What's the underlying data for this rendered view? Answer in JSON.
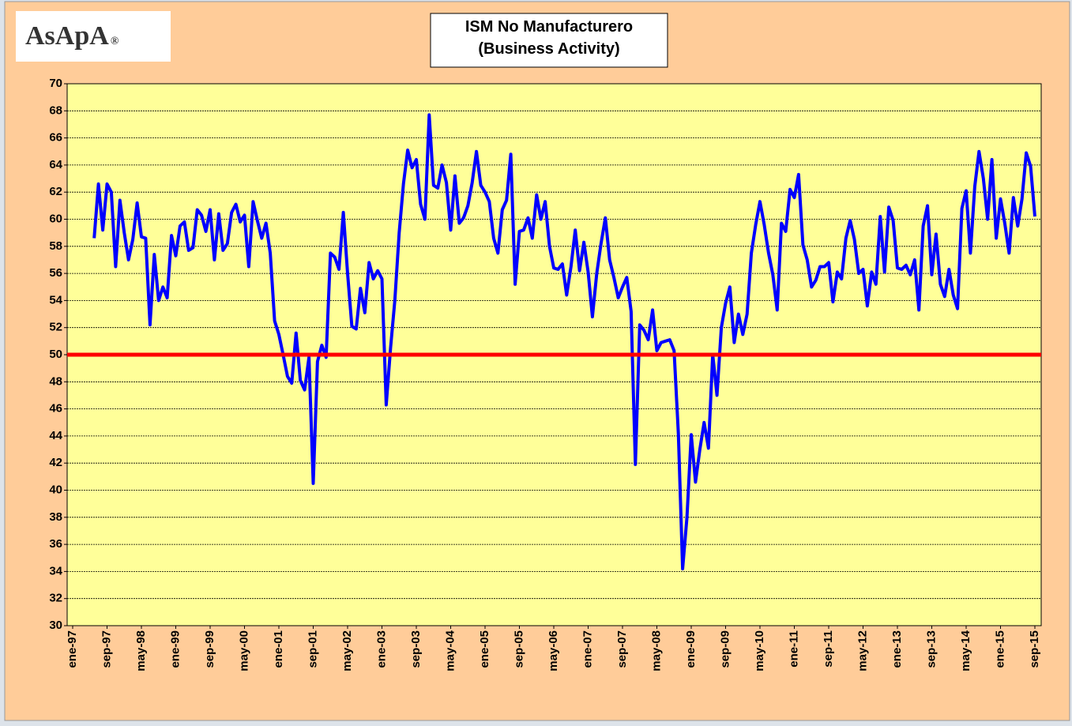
{
  "chart_data": {
    "type": "line",
    "title": "ISM No Manufacturero",
    "subtitle": "(Business Activity)",
    "logo": {
      "name": "AsApA",
      "mark": "®"
    },
    "categories": [
      "ene-97",
      null,
      null,
      null,
      null,
      null,
      null,
      null,
      "sep-97",
      null,
      null,
      null,
      null,
      null,
      null,
      null,
      "may-98",
      null,
      null,
      null,
      null,
      null,
      null,
      null,
      "ene-99",
      null,
      null,
      null,
      null,
      null,
      null,
      null,
      "sep-99",
      null,
      null,
      null,
      null,
      null,
      null,
      null,
      "may-00",
      null,
      null,
      null,
      null,
      null,
      null,
      null,
      "ene-01",
      null,
      null,
      null,
      null,
      null,
      null,
      null,
      "sep-01",
      null,
      null,
      null,
      null,
      null,
      null,
      null,
      "may-02",
      null,
      null,
      null,
      null,
      null,
      null,
      null,
      "ene-03",
      null,
      null,
      null,
      null,
      null,
      null,
      null,
      "sep-03",
      null,
      null,
      null,
      null,
      null,
      null,
      null,
      "may-04",
      null,
      null,
      null,
      null,
      null,
      null,
      null,
      "ene-05",
      null,
      null,
      null,
      null,
      null,
      null,
      null,
      "sep-05",
      null,
      null,
      null,
      null,
      null,
      null,
      null,
      "may-06",
      null,
      null,
      null,
      null,
      null,
      null,
      null,
      "ene-07",
      null,
      null,
      null,
      null,
      null,
      null,
      null,
      "sep-07",
      null,
      null,
      null,
      null,
      null,
      null,
      null,
      "may-08",
      null,
      null,
      null,
      null,
      null,
      null,
      null,
      "ene-09",
      null,
      null,
      null,
      null,
      null,
      null,
      null,
      "sep-09",
      null,
      null,
      null,
      null,
      null,
      null,
      null,
      "may-10",
      null,
      null,
      null,
      null,
      null,
      null,
      null,
      "ene-11",
      null,
      null,
      null,
      null,
      null,
      null,
      null,
      "sep-11",
      null,
      null,
      null,
      null,
      null,
      null,
      null,
      "may-12",
      null,
      null,
      null,
      null,
      null,
      null,
      null,
      "ene-13",
      null,
      null,
      null,
      null,
      null,
      null,
      null,
      "sep-13",
      null,
      null,
      null,
      null,
      null,
      null,
      null,
      "may-14",
      null,
      null,
      null,
      null,
      null,
      null,
      null,
      "ene-15",
      null,
      null,
      null,
      null,
      null,
      null,
      null,
      "sep-15"
    ],
    "values": [
      null,
      null,
      null,
      null,
      null,
      58.6,
      62.6,
      59.2,
      62.6,
      62,
      56.5,
      61.4,
      59,
      57,
      58.5,
      61.2,
      58.7,
      58.6,
      52.2,
      57.4,
      54,
      55,
      54.2,
      58.8,
      57.3,
      59.5,
      59.8,
      57.7,
      57.9,
      60.7,
      60.3,
      59.1,
      60.7,
      57,
      60.4,
      57.7,
      58.2,
      60.5,
      61.1,
      59.8,
      60.3,
      56.5,
      61.3,
      59.9,
      58.6,
      59.7,
      57.5,
      52.5,
      51.5,
      50,
      48.4,
      47.9,
      51.6,
      48.1,
      47.4,
      49.8,
      40.5,
      49.5,
      50.7,
      49.8,
      57.5,
      57.2,
      56.3,
      60.5,
      56,
      52.1,
      51.9,
      54.9,
      53.1,
      56.8,
      55.6,
      56.2,
      55.6,
      46.3,
      50.5,
      54,
      59,
      62.6,
      65.1,
      63.8,
      64.4,
      61.1,
      60,
      67.7,
      62.5,
      62.3,
      64,
      62.7,
      59.2,
      63.2,
      59.7,
      60.1,
      61,
      62.7,
      65,
      62.5,
      62,
      61.3,
      58.6,
      57.5,
      60.7,
      61.4,
      64.8,
      55.2,
      59.1,
      59.2,
      60.1,
      58.6,
      61.8,
      60,
      61.3,
      58,
      56.4,
      56.3,
      56.7,
      54.4,
      56.5,
      59.2,
      56.2,
      58.3,
      56.1,
      52.8,
      56,
      58.2,
      60.1,
      57,
      55.7,
      54.2,
      55,
      55.7,
      53.2,
      41.9,
      52.2,
      51.8,
      51.1,
      53.3,
      50.3,
      50.9,
      51,
      51.1,
      50.3,
      44.2,
      34.2,
      38,
      44.1,
      40.6,
      43,
      45,
      43.1,
      50,
      47,
      52,
      53.8,
      55,
      50.9,
      53,
      51.5,
      53,
      57.5,
      59.6,
      61.3,
      59.6,
      57.5,
      55.9,
      53.3,
      59.7,
      59.1,
      62.2,
      61.6,
      63.3,
      58.1,
      57,
      55,
      55.5,
      56.5,
      56.5,
      56.8,
      53.9,
      56.1,
      55.6,
      58.6,
      59.9,
      58.5,
      56,
      56.3,
      53.6,
      56.1,
      55.2,
      60.2,
      56.1,
      60.9,
      59.9,
      56.4,
      56.3,
      56.6,
      55.9,
      57,
      53.3,
      59.5,
      61,
      55.9,
      58.9,
      55.2,
      54.3,
      56.3,
      54.4,
      53.4,
      60.8,
      62.1,
      57.5,
      62.4,
      65,
      63,
      60,
      64.4,
      58.6,
      61.5,
      59.7,
      57.5,
      61.6,
      59.5,
      61.5,
      64.9,
      63.9,
      60.2
    ],
    "color": "#0000ff",
    "reference_line": {
      "value": 50,
      "color": "#ff0000"
    },
    "ylim": [
      30,
      70
    ],
    "yticks": [
      30,
      32,
      34,
      36,
      38,
      40,
      42,
      44,
      46,
      48,
      50,
      52,
      54,
      56,
      58,
      60,
      62,
      64,
      66,
      68,
      70
    ],
    "grid": true
  }
}
